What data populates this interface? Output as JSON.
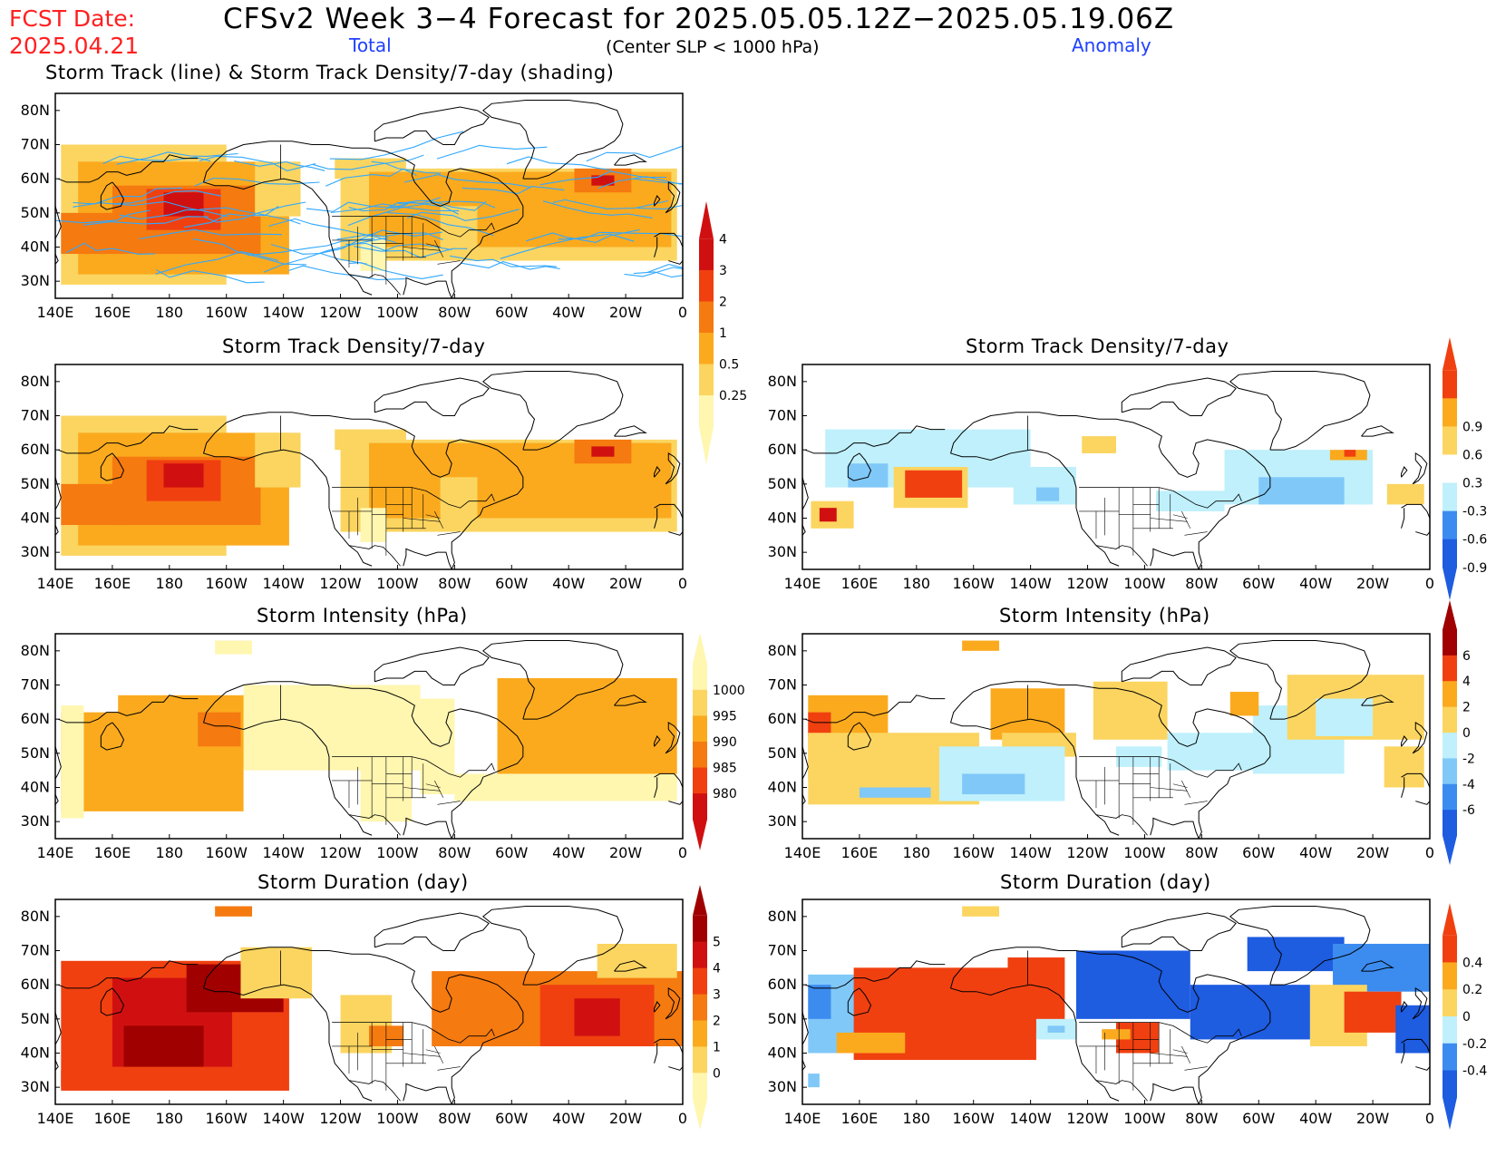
{
  "header": {
    "title": "CFSv2 Week 3−4 Forecast for 2025.05.05.12Z−2025.05.19.06Z",
    "fcst_label": "FCST Date:",
    "fcst_date": "2025.04.21",
    "total_label": "Total",
    "anomaly_label": "Anomaly",
    "criterion": "(Center SLP < 1000 hPa)"
  },
  "axes": {
    "lat_labels": [
      "80N",
      "70N",
      "60N",
      "50N",
      "40N",
      "30N"
    ],
    "lon_labels": [
      "140E",
      "160E",
      "180",
      "160W",
      "140W",
      "120W",
      "100W",
      "80W",
      "60W",
      "40W",
      "20W",
      "0"
    ]
  },
  "colors": {
    "dark_red": "#a00000",
    "red": "#d01010",
    "red_orange": "#f04010",
    "orange": "#f57a10",
    "amber": "#fbaa1e",
    "gold": "#fbd560",
    "pale_yellow": "#fff6b0",
    "light_cyan": "#bff0fc",
    "sky_blue": "#80c8f8",
    "medium_blue": "#3c8cf0",
    "deep_blue": "#1e5ce0",
    "track_line": "#30a8ff",
    "coast": "#000000"
  },
  "panels": [
    {
      "id": "track",
      "title": "Storm Track (line) & Storm Track Density/7-day (shading)",
      "legend": [
        "0.25",
        "0.5",
        "1",
        "2",
        "3",
        "4"
      ]
    },
    {
      "id": "density-total",
      "title": "Storm Track Density/7-day",
      "legend": []
    },
    {
      "id": "density-anom",
      "title": "Storm Track Density/7-day",
      "legend": [
        "-0.9",
        "-0.6",
        "-0.3",
        "0.3",
        "0.6",
        "0.9"
      ]
    },
    {
      "id": "intensity-total",
      "title": "Storm Intensity (hPa)",
      "legend": [
        "980",
        "985",
        "990",
        "995",
        "1000"
      ]
    },
    {
      "id": "intensity-anom",
      "title": "Storm Intensity (hPa)",
      "legend": [
        "-6",
        "-4",
        "-2",
        "0",
        "2",
        "4",
        "6"
      ]
    },
    {
      "id": "duration-total",
      "title": "Storm Duration (day)",
      "legend": [
        "0",
        "1",
        "2",
        "3",
        "4",
        "5"
      ]
    },
    {
      "id": "duration-anom",
      "title": "Storm Duration (day)",
      "legend": [
        "-0.4",
        "-0.2",
        "0",
        "0.2",
        "0.4"
      ]
    }
  ]
}
